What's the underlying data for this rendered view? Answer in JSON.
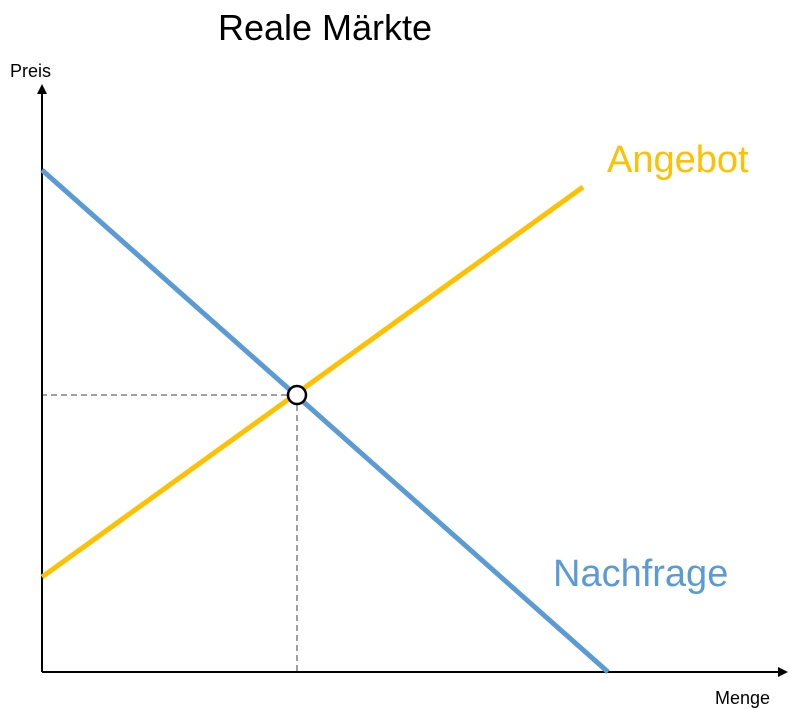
{
  "title": "Reale Märkte",
  "axes": {
    "y_label": "Preis",
    "x_label": "Menge"
  },
  "curves": [
    {
      "label": "Angebot"
    },
    {
      "label": "Nachfrage"
    }
  ]
}
